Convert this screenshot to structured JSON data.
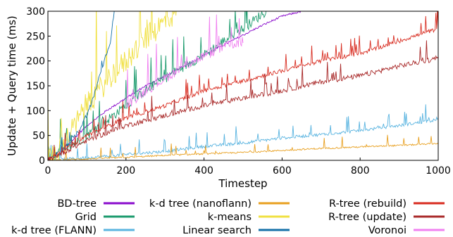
{
  "chart_data": {
    "type": "line",
    "title": "",
    "xlabel": "Timestep",
    "ylabel": "Update + Query time (ms)",
    "xlim": [
      0,
      1000
    ],
    "ylim": [
      0,
      300
    ],
    "xticks": [
      0,
      200,
      400,
      600,
      800,
      1000
    ],
    "yticks": [
      0,
      50,
      100,
      150,
      200,
      250,
      300
    ],
    "grid": false,
    "legend_position": "bottom",
    "series": [
      {
        "name": "BD-tree",
        "color": "#8a0ccc",
        "points": [
          [
            0,
            0
          ],
          [
            50,
            30
          ],
          [
            100,
            70
          ],
          [
            150,
            100
          ],
          [
            200,
            125
          ],
          [
            250,
            150
          ],
          [
            300,
            170
          ],
          [
            350,
            190
          ],
          [
            400,
            212
          ],
          [
            450,
            232
          ],
          [
            500,
            252
          ],
          [
            550,
            272
          ],
          [
            600,
            290
          ],
          [
            650,
            300
          ]
        ],
        "noise": 2,
        "spike_rate": 0
      },
      {
        "name": "Grid",
        "color": "#1a9a6c",
        "points": [
          [
            0,
            0
          ],
          [
            50,
            25
          ],
          [
            100,
            50
          ],
          [
            150,
            80
          ],
          [
            200,
            110
          ],
          [
            250,
            140
          ],
          [
            300,
            165
          ],
          [
            350,
            190
          ],
          [
            400,
            212
          ],
          [
            450,
            240
          ],
          [
            500,
            265
          ],
          [
            550,
            295
          ],
          [
            560,
            300
          ]
        ],
        "noise": 10,
        "spike_rate": 0.08
      },
      {
        "name": "k-d tree (FLANN)",
        "color": "#5ab4e0",
        "points": [
          [
            0,
            0
          ],
          [
            100,
            5
          ],
          [
            200,
            12
          ],
          [
            300,
            18
          ],
          [
            400,
            28
          ],
          [
            500,
            35
          ],
          [
            600,
            45
          ],
          [
            700,
            52
          ],
          [
            800,
            60
          ],
          [
            900,
            70
          ],
          [
            1000,
            82
          ]
        ],
        "noise": 3,
        "spike_rate": 0.1
      },
      {
        "name": "k-d tree (nanoflann)",
        "color": "#e8a020",
        "points": [
          [
            0,
            0
          ],
          [
            100,
            3
          ],
          [
            200,
            6
          ],
          [
            300,
            10
          ],
          [
            400,
            13
          ],
          [
            500,
            16
          ],
          [
            600,
            20
          ],
          [
            700,
            24
          ],
          [
            800,
            27
          ],
          [
            900,
            30
          ],
          [
            1000,
            34
          ]
        ],
        "noise": 1.5,
        "spike_rate": 0.06
      },
      {
        "name": "k-means",
        "color": "#f0e040",
        "points": [
          [
            0,
            0
          ],
          [
            50,
            45
          ],
          [
            100,
            110
          ],
          [
            150,
            160
          ],
          [
            200,
            200
          ],
          [
            250,
            245
          ],
          [
            300,
            280
          ],
          [
            330,
            300
          ]
        ],
        "noise": 25,
        "spike_rate": 0.1
      },
      {
        "name": "Linear search",
        "color": "#1470a8",
        "points": [
          [
            0,
            0
          ],
          [
            40,
            20
          ],
          [
            80,
            60
          ],
          [
            110,
            110
          ],
          [
            140,
            190
          ],
          [
            160,
            240
          ],
          [
            170,
            300
          ]
        ],
        "noise": 5,
        "spike_rate": 0.05
      },
      {
        "name": "R-tree (rebuild)",
        "color": "#d82c20",
        "points": [
          [
            0,
            0
          ],
          [
            100,
            50
          ],
          [
            200,
            85
          ],
          [
            300,
            110
          ],
          [
            400,
            140
          ],
          [
            500,
            160
          ],
          [
            600,
            180
          ],
          [
            700,
            200
          ],
          [
            800,
            215
          ],
          [
            900,
            240
          ],
          [
            1000,
            265
          ]
        ],
        "noise": 4,
        "spike_rate": 0.1
      },
      {
        "name": "R-tree (update)",
        "color": "#a82828",
        "points": [
          [
            0,
            0
          ],
          [
            100,
            40
          ],
          [
            200,
            70
          ],
          [
            300,
            90
          ],
          [
            400,
            110
          ],
          [
            500,
            125
          ],
          [
            600,
            140
          ],
          [
            700,
            158
          ],
          [
            800,
            170
          ],
          [
            900,
            190
          ],
          [
            1000,
            205
          ]
        ],
        "noise": 5,
        "spike_rate": 0.08
      },
      {
        "name": "Voronoi",
        "color": "#f080f0",
        "points": [
          [
            200,
            110
          ],
          [
            250,
            140
          ],
          [
            300,
            165
          ],
          [
            350,
            190
          ],
          [
            400,
            210
          ],
          [
            450,
            228
          ],
          [
            500,
            240
          ]
        ],
        "noise": 10,
        "spike_rate": 0.05
      }
    ]
  }
}
